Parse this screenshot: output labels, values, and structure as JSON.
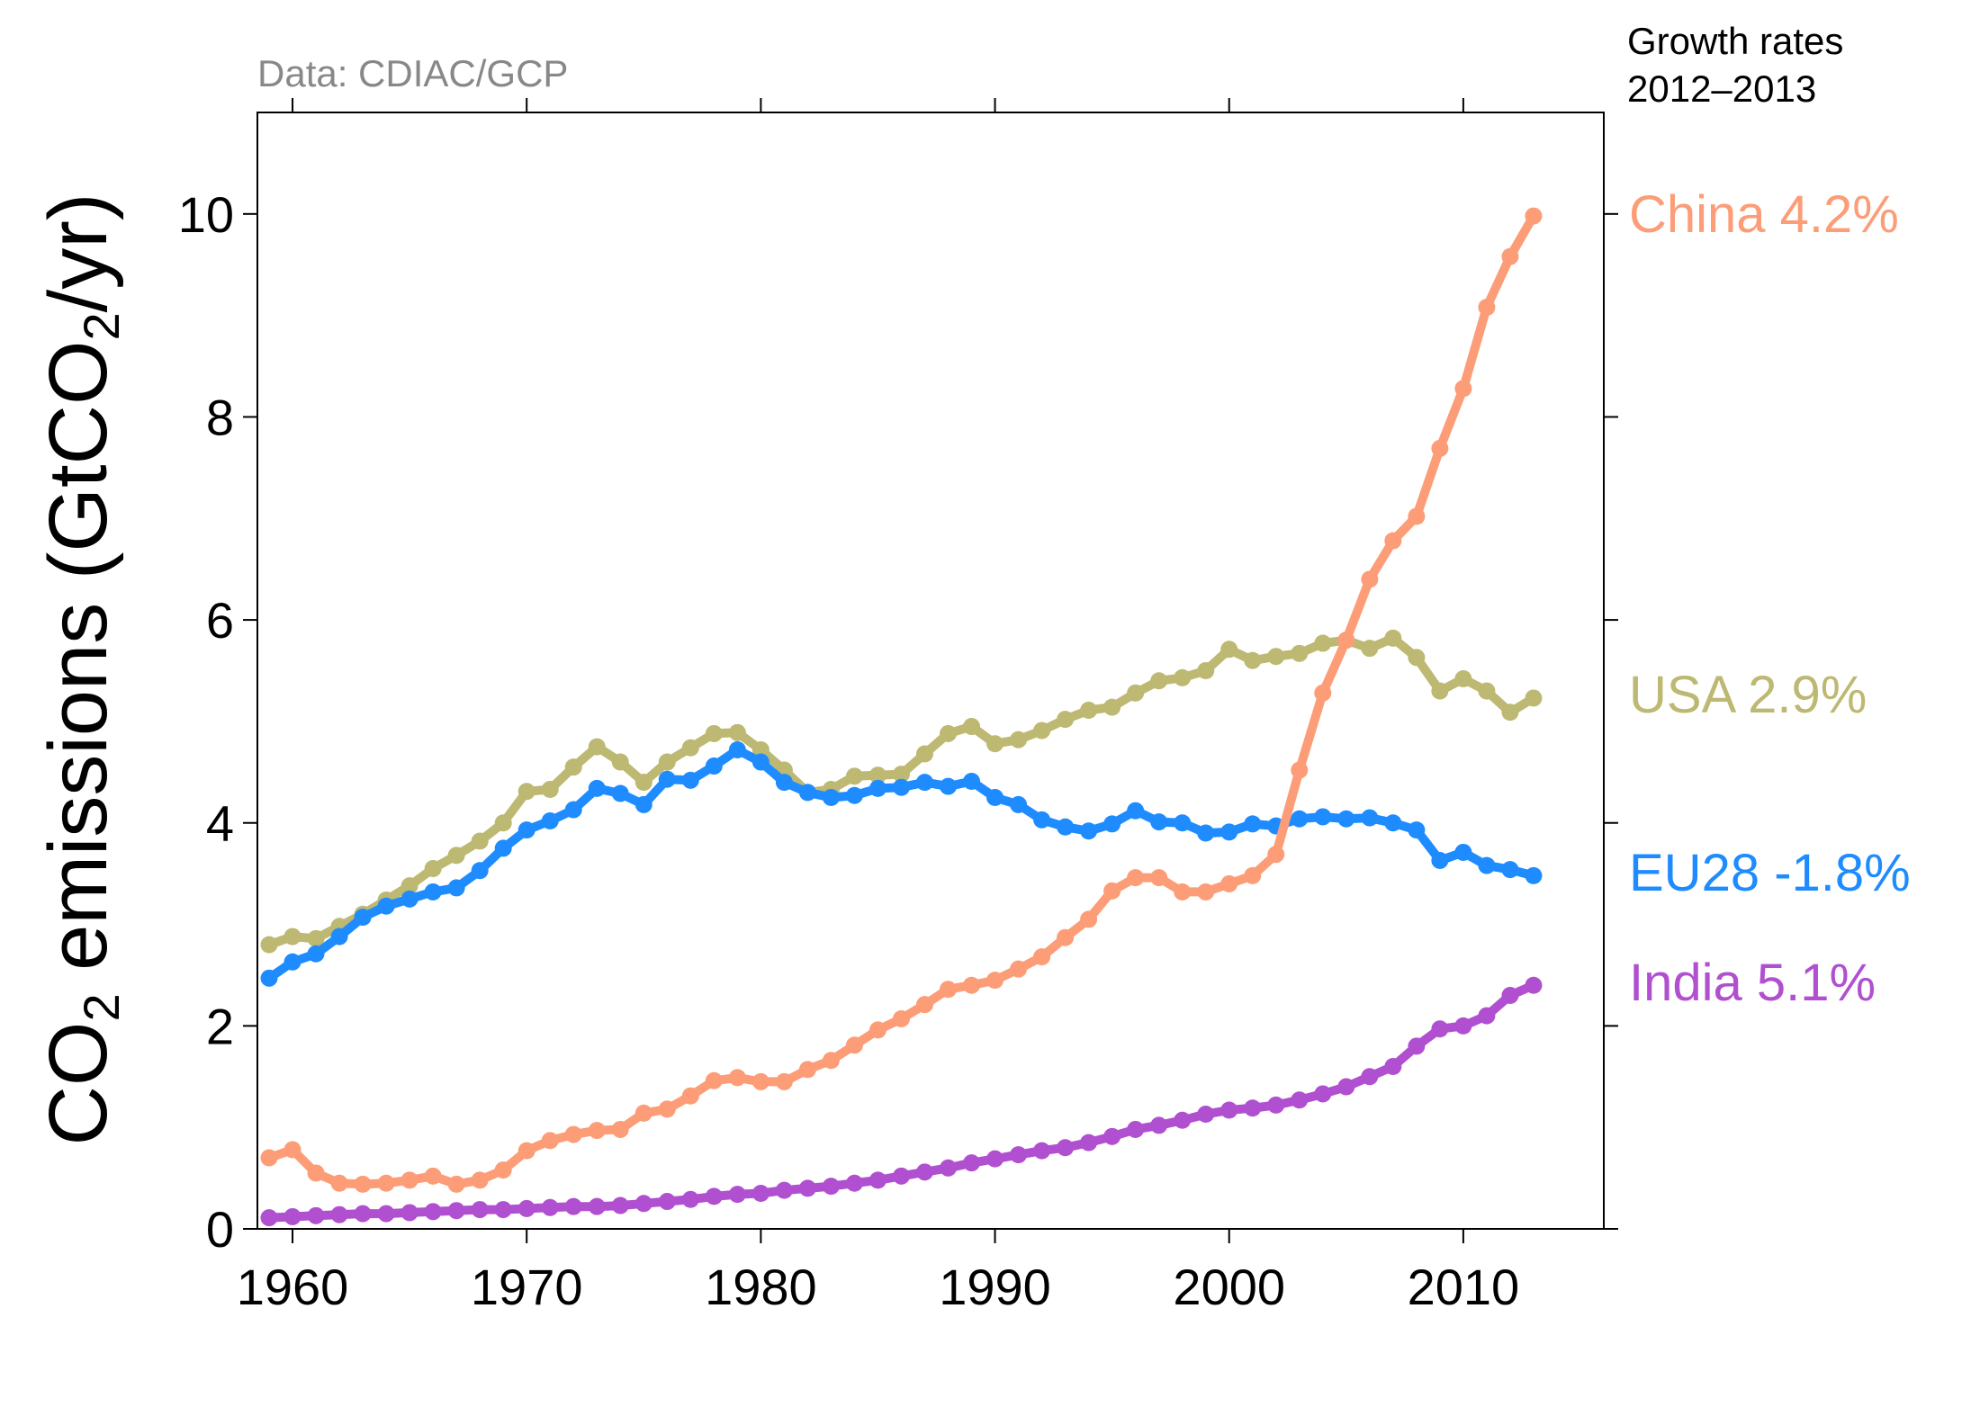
{
  "chart_data": {
    "type": "line",
    "source_note": "Data: CDIAC/GCP",
    "ylabel_parts": [
      "CO",
      "2",
      " emissions (GtCO",
      "2",
      "/yr)"
    ],
    "legend_title": [
      "Growth rates",
      "2012–2013"
    ],
    "xlim": [
      1958.5,
      2016
    ],
    "ylim": [
      0,
      11
    ],
    "xticks": [
      1960,
      1970,
      1980,
      1990,
      2000,
      2010
    ],
    "yticks": [
      0,
      2,
      4,
      6,
      8,
      10
    ],
    "grid": false,
    "legend_placement": "right, outside plot",
    "x": [
      1959,
      1960,
      1961,
      1962,
      1963,
      1964,
      1965,
      1966,
      1967,
      1968,
      1969,
      1970,
      1971,
      1972,
      1973,
      1974,
      1975,
      1976,
      1977,
      1978,
      1979,
      1980,
      1981,
      1982,
      1983,
      1984,
      1985,
      1986,
      1987,
      1988,
      1989,
      1990,
      1991,
      1992,
      1993,
      1994,
      1995,
      1996,
      1997,
      1998,
      1999,
      2000,
      2001,
      2002,
      2003,
      2004,
      2005,
      2006,
      2007,
      2008,
      2009,
      2010,
      2011,
      2012,
      2013
    ],
    "series": [
      {
        "name": "China",
        "label": "China 4.2%",
        "color": "#fc9d78",
        "values": [
          0.7,
          0.78,
          0.55,
          0.45,
          0.44,
          0.45,
          0.48,
          0.52,
          0.44,
          0.48,
          0.58,
          0.77,
          0.87,
          0.93,
          0.97,
          0.98,
          1.14,
          1.18,
          1.31,
          1.46,
          1.49,
          1.45,
          1.45,
          1.57,
          1.66,
          1.81,
          1.96,
          2.07,
          2.21,
          2.36,
          2.4,
          2.45,
          2.56,
          2.68,
          2.87,
          3.05,
          3.33,
          3.46,
          3.46,
          3.32,
          3.32,
          3.4,
          3.48,
          3.69,
          4.52,
          5.28,
          5.8,
          6.4,
          6.78,
          7.02,
          7.69,
          8.28,
          9.08,
          9.58,
          9.98
        ]
      },
      {
        "name": "USA",
        "label": "USA 2.9%",
        "color": "#bdb872",
        "values": [
          2.8,
          2.88,
          2.86,
          2.98,
          3.1,
          3.24,
          3.38,
          3.55,
          3.68,
          3.82,
          4.0,
          4.31,
          4.33,
          4.55,
          4.75,
          4.6,
          4.4,
          4.6,
          4.74,
          4.88,
          4.89,
          4.72,
          4.52,
          4.3,
          4.33,
          4.46,
          4.47,
          4.48,
          4.68,
          4.88,
          4.95,
          4.78,
          4.82,
          4.91,
          5.02,
          5.11,
          5.14,
          5.28,
          5.4,
          5.43,
          5.5,
          5.71,
          5.6,
          5.64,
          5.67,
          5.77,
          5.8,
          5.72,
          5.82,
          5.63,
          5.3,
          5.42,
          5.3,
          5.09,
          5.23
        ]
      },
      {
        "name": "EU28",
        "label": "EU28 -1.8%",
        "color": "#1e8cff",
        "values": [
          2.47,
          2.63,
          2.71,
          2.88,
          3.07,
          3.18,
          3.25,
          3.32,
          3.36,
          3.53,
          3.75,
          3.93,
          4.02,
          4.13,
          4.34,
          4.29,
          4.18,
          4.43,
          4.42,
          4.56,
          4.72,
          4.6,
          4.4,
          4.3,
          4.25,
          4.27,
          4.34,
          4.35,
          4.4,
          4.36,
          4.41,
          4.25,
          4.18,
          4.03,
          3.96,
          3.92,
          3.99,
          4.12,
          4.01,
          4.0,
          3.9,
          3.91,
          3.99,
          3.97,
          4.04,
          4.06,
          4.04,
          4.05,
          4.0,
          3.93,
          3.63,
          3.71,
          3.58,
          3.54,
          3.48
        ]
      },
      {
        "name": "India",
        "label": "India 5.1%",
        "color": "#b050d0",
        "values": [
          0.11,
          0.12,
          0.13,
          0.14,
          0.15,
          0.15,
          0.16,
          0.17,
          0.18,
          0.19,
          0.19,
          0.2,
          0.21,
          0.22,
          0.22,
          0.23,
          0.25,
          0.27,
          0.29,
          0.32,
          0.34,
          0.35,
          0.38,
          0.4,
          0.42,
          0.45,
          0.48,
          0.52,
          0.56,
          0.6,
          0.65,
          0.69,
          0.73,
          0.77,
          0.8,
          0.85,
          0.91,
          0.98,
          1.02,
          1.07,
          1.13,
          1.17,
          1.19,
          1.22,
          1.27,
          1.33,
          1.4,
          1.5,
          1.6,
          1.8,
          1.97,
          2.0,
          2.1,
          2.3,
          2.4
        ]
      }
    ]
  }
}
